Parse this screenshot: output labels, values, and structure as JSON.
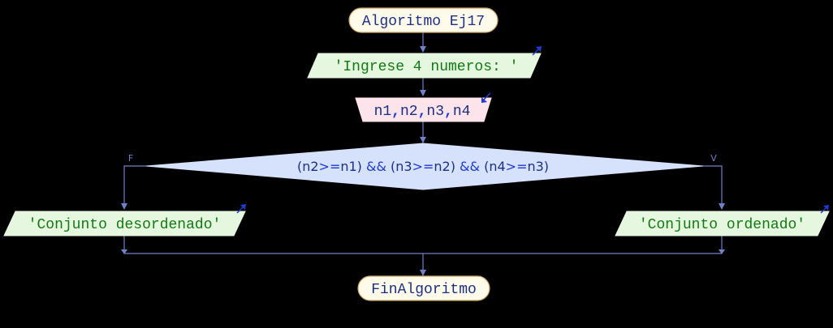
{
  "diagram": {
    "title": "Algoritmo Ej17",
    "output_prompt": "'Ingrese 4 numeros: '",
    "input": {
      "parts": [
        "n1",
        ",",
        "n2",
        ",",
        "n3",
        ",",
        "n4"
      ]
    },
    "decision": {
      "parts": [
        "(n2",
        ">=",
        "n1)",
        " && ",
        "(n3",
        ">=",
        "n2)",
        " && ",
        "(n4",
        ">=",
        "n3)"
      ],
      "false_label": "F",
      "true_label": "V"
    },
    "output_false": "'Conjunto desordenado'",
    "output_true": "'Conjunto ordenado'",
    "end": "FinAlgoritmo"
  },
  "colors": {
    "background": "#000000",
    "line": "#6f82c7",
    "terminal_fill": "#fffbea",
    "terminal_stroke": "#c9a262",
    "terminal_text": "#1c2f86",
    "output_fill": "#e6f7e0",
    "output_text": "#127a12",
    "input_fill": "#fde3ea",
    "input_text": "#1c2f86",
    "input_punct": "#1f3bd0",
    "decision_fill": "#d6e2fb",
    "decision_text": "#1c2f86",
    "decision_op": "#1f3bd0"
  }
}
